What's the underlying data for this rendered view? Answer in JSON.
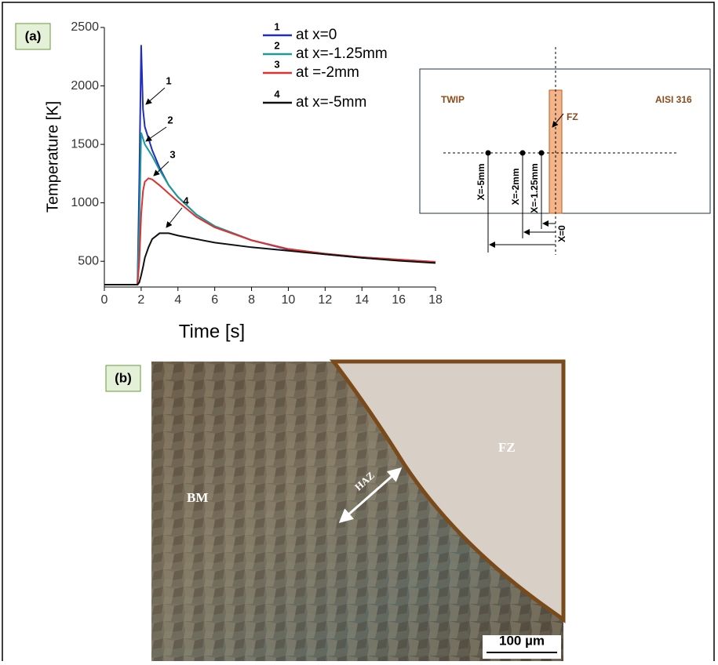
{
  "chart_data": {
    "type": "line",
    "panel": "(a)",
    "xlabel": "Time [s]",
    "ylabel": "Temperature [K]",
    "x": [
      0,
      1.8,
      1.9,
      2.0,
      2.1,
      2.2,
      2.4,
      2.6,
      3,
      3.5,
      4,
      5,
      6,
      8,
      10,
      12,
      14,
      16,
      18
    ],
    "xlim": [
      0,
      18
    ],
    "xticks": [
      0,
      2,
      4,
      6,
      8,
      10,
      12,
      14,
      16,
      18
    ],
    "ylim": [
      280,
      2500
    ],
    "yticks": [
      500,
      1000,
      1500,
      2000,
      2500
    ],
    "series": [
      {
        "key": "1",
        "name": "at x=0",
        "color": "#1f2fb8",
        "values": [
          300,
          300,
          1200,
          2350,
          1800,
          1650,
          1550,
          1450,
          1300,
          1150,
          1050,
          900,
          800,
          680,
          600,
          560,
          530,
          510,
          490
        ]
      },
      {
        "key": "2",
        "name": "at x=-1.25mm",
        "color": "#1a9a98",
        "values": [
          300,
          300,
          800,
          1600,
          1550,
          1500,
          1450,
          1400,
          1280,
          1150,
          1050,
          900,
          800,
          680,
          605,
          565,
          535,
          515,
          495
        ]
      },
      {
        "key": "3",
        "name": "at =-2mm",
        "color": "#e03030",
        "values": [
          300,
          300,
          500,
          900,
          1100,
          1180,
          1210,
          1200,
          1150,
          1080,
          1010,
          880,
          790,
          680,
          605,
          565,
          535,
          515,
          495
        ]
      },
      {
        "key": "4",
        "name": "at x=-5mm",
        "color": "#111111",
        "values": [
          300,
          300,
          320,
          380,
          450,
          530,
          620,
          690,
          740,
          740,
          720,
          690,
          660,
          620,
          590,
          560,
          530,
          505,
          485
        ]
      }
    ]
  },
  "schematic": {
    "left": "TWIP",
    "right": "AISI 316",
    "zone": "FZ",
    "positions": [
      "X=-5mm",
      "X=-2mm",
      "X=-1.25mm",
      "X=0"
    ]
  },
  "micrograph": {
    "panel": "(b)",
    "base_metal": "BM",
    "haz": "HAZ",
    "fusion_zone": "FZ",
    "scale_bar": "100 µm"
  }
}
